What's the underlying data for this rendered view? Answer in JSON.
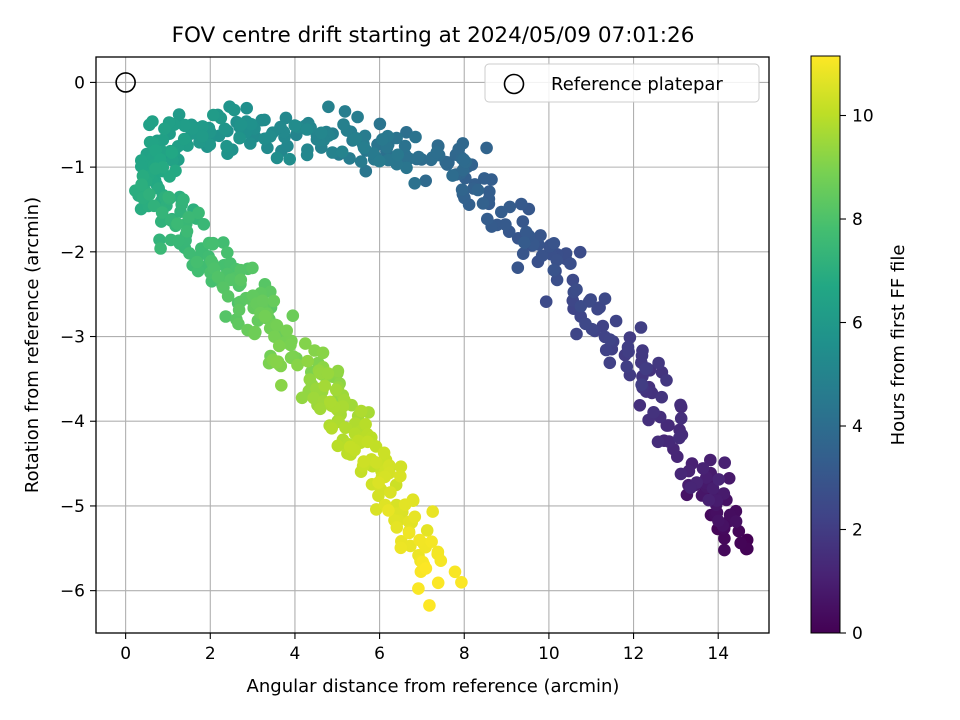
{
  "chart_data": {
    "type": "scatter",
    "title": "FOV centre drift starting at 2024/05/09 07:01:26",
    "xlabel": "Angular distance from reference (arcmin)",
    "ylabel": "Rotation from reference (arcmin)",
    "xlim": [
      -0.7,
      15.2
    ],
    "ylim": [
      -6.5,
      0.3
    ],
    "xticks": [
      0,
      2,
      4,
      6,
      8,
      10,
      12,
      14
    ],
    "yticks": [
      0,
      -1,
      -2,
      -3,
      -4,
      -5,
      -6
    ],
    "grid": true,
    "legend": {
      "position": "top-right",
      "entries": [
        "Reference platepar"
      ]
    },
    "reference": {
      "x": 0,
      "y": 0
    },
    "colorbar": {
      "label": "Hours from first FF file",
      "colormap": "viridis",
      "range": [
        0,
        11.15
      ],
      "ticks": [
        0,
        2,
        4,
        6,
        8,
        10
      ]
    },
    "anchor_path": [
      {
        "h": 0.0,
        "x": 14.4,
        "y": -5.5
      },
      {
        "h": 0.6,
        "x": 14.0,
        "y": -5.0
      },
      {
        "h": 1.2,
        "x": 13.4,
        "y": -4.5
      },
      {
        "h": 1.7,
        "x": 12.4,
        "y": -3.6
      },
      {
        "h": 2.2,
        "x": 11.5,
        "y": -3.0
      },
      {
        "h": 2.7,
        "x": 10.3,
        "y": -2.2
      },
      {
        "h": 3.2,
        "x": 9.0,
        "y": -1.6
      },
      {
        "h": 3.6,
        "x": 8.2,
        "y": -1.1
      },
      {
        "h": 4.0,
        "x": 7.2,
        "y": -0.85
      },
      {
        "h": 4.4,
        "x": 6.1,
        "y": -0.85
      },
      {
        "h": 4.8,
        "x": 5.1,
        "y": -0.6
      },
      {
        "h": 5.2,
        "x": 4.0,
        "y": -0.65
      },
      {
        "h": 5.6,
        "x": 2.7,
        "y": -0.6
      },
      {
        "h": 6.0,
        "x": 1.6,
        "y": -0.55
      },
      {
        "h": 6.5,
        "x": 0.6,
        "y": -0.8
      },
      {
        "h": 6.9,
        "x": 0.7,
        "y": -1.3
      },
      {
        "h": 7.4,
        "x": 1.3,
        "y": -1.7
      },
      {
        "h": 8.0,
        "x": 2.4,
        "y": -2.3
      },
      {
        "h": 8.6,
        "x": 3.3,
        "y": -2.8
      },
      {
        "h": 9.2,
        "x": 4.4,
        "y": -3.4
      },
      {
        "h": 9.8,
        "x": 5.3,
        "y": -4.0
      },
      {
        "h": 10.4,
        "x": 6.1,
        "y": -4.7
      },
      {
        "h": 10.8,
        "x": 6.8,
        "y": -5.3
      },
      {
        "h": 11.15,
        "x": 7.5,
        "y": -6.0
      }
    ],
    "point_count": 620,
    "spread": {
      "x": 0.28,
      "y": 0.14
    }
  }
}
